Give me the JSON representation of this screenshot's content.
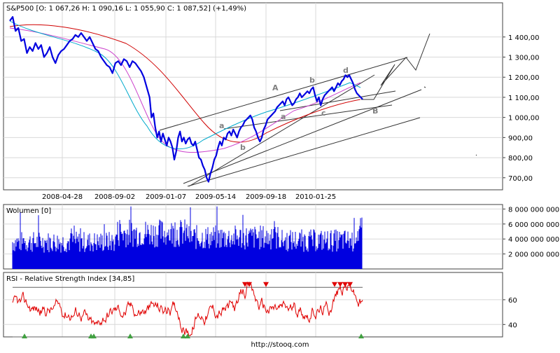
{
  "footer": "http://stooq.com",
  "chart_data": [
    {
      "type": "line",
      "title": "S&P500 [O: 1 067,26  H: 1 090,16  L: 1 055,90  C: 1 087,52] (+1,49%)",
      "x_tick_labels": [
        "2008-04-28",
        "2008-09-02",
        "2009-01-07",
        "2009-05-14",
        "2009-09-18",
        "2010-01-25"
      ],
      "y_tick_values": [
        700,
        800,
        900,
        1000,
        1100,
        1200,
        1300,
        1400
      ],
      "y_tick_labels": [
        "700,00",
        "800,00",
        "900,00",
        "1 000,00",
        "1 100,00",
        "1 200,00",
        "1 300,00",
        "1 400,00"
      ],
      "ylim": [
        640,
        1570
      ],
      "grid": true,
      "series": [],
      "price_points": [
        [
          0,
          1480
        ],
        [
          3,
          1500
        ],
        [
          6,
          1430
        ],
        [
          9,
          1445
        ],
        [
          12,
          1380
        ],
        [
          15,
          1390
        ],
        [
          18,
          1320
        ],
        [
          21,
          1350
        ],
        [
          24,
          1330
        ],
        [
          27,
          1370
        ],
        [
          30,
          1340
        ],
        [
          33,
          1360
        ],
        [
          36,
          1300
        ],
        [
          39,
          1320
        ],
        [
          42,
          1350
        ],
        [
          45,
          1300
        ],
        [
          48,
          1270
        ],
        [
          51,
          1310
        ],
        [
          54,
          1330
        ],
        [
          57,
          1340
        ],
        [
          60,
          1360
        ],
        [
          63,
          1380
        ],
        [
          66,
          1390
        ],
        [
          69,
          1410
        ],
        [
          72,
          1400
        ],
        [
          75,
          1420
        ],
        [
          78,
          1400
        ],
        [
          81,
          1380
        ],
        [
          84,
          1400
        ],
        [
          87,
          1370
        ],
        [
          90,
          1340
        ],
        [
          93,
          1330
        ],
        [
          96,
          1300
        ],
        [
          99,
          1280
        ],
        [
          102,
          1260
        ],
        [
          105,
          1250
        ],
        [
          108,
          1220
        ],
        [
          111,
          1270
        ],
        [
          114,
          1280
        ],
        [
          117,
          1260
        ],
        [
          120,
          1290
        ],
        [
          123,
          1280
        ],
        [
          126,
          1250
        ],
        [
          129,
          1280
        ],
        [
          132,
          1270
        ],
        [
          135,
          1250
        ],
        [
          138,
          1230
        ],
        [
          141,
          1200
        ],
        [
          144,
          1150
        ],
        [
          147,
          1100
        ],
        [
          149,
          1000
        ],
        [
          151,
          1020
        ],
        [
          153,
          950
        ],
        [
          155,
          900
        ],
        [
          157,
          930
        ],
        [
          159,
          880
        ],
        [
          161,
          920
        ],
        [
          163,
          890
        ],
        [
          165,
          860
        ],
        [
          167,
          900
        ],
        [
          169,
          880
        ],
        [
          171,
          850
        ],
        [
          173,
          790
        ],
        [
          175,
          830
        ],
        [
          177,
          900
        ],
        [
          179,
          930
        ],
        [
          181,
          880
        ],
        [
          183,
          900
        ],
        [
          185,
          870
        ],
        [
          187,
          890
        ],
        [
          189,
          900
        ],
        [
          191,
          870
        ],
        [
          193,
          860
        ],
        [
          195,
          880
        ],
        [
          197,
          840
        ],
        [
          199,
          800
        ],
        [
          201,
          790
        ],
        [
          203,
          760
        ],
        [
          205,
          740
        ],
        [
          207,
          700
        ],
        [
          209,
          680
        ],
        [
          211,
          720
        ],
        [
          213,
          750
        ],
        [
          215,
          790
        ],
        [
          217,
          810
        ],
        [
          219,
          850
        ],
        [
          221,
          880
        ],
        [
          223,
          860
        ],
        [
          225,
          900
        ],
        [
          227,
          890
        ],
        [
          229,
          920
        ],
        [
          231,
          930
        ],
        [
          233,
          910
        ],
        [
          235,
          940
        ],
        [
          237,
          920
        ],
        [
          239,
          900
        ],
        [
          241,
          930
        ],
        [
          243,
          950
        ],
        [
          245,
          960
        ],
        [
          247,
          980
        ],
        [
          249,
          990
        ],
        [
          251,
          1000
        ],
        [
          253,
          1010
        ],
        [
          255,
          990
        ],
        [
          257,
          950
        ],
        [
          259,
          930
        ],
        [
          261,
          900
        ],
        [
          263,
          880
        ],
        [
          265,
          900
        ],
        [
          267,
          940
        ],
        [
          269,
          960
        ],
        [
          271,
          990
        ],
        [
          273,
          1000
        ],
        [
          275,
          1010
        ],
        [
          277,
          1020
        ],
        [
          279,
          1030
        ],
        [
          281,
          1050
        ],
        [
          283,
          1060
        ],
        [
          285,
          1070
        ],
        [
          287,
          1080
        ],
        [
          289,
          1060
        ],
        [
          291,
          1090
        ],
        [
          293,
          1100
        ],
        [
          295,
          1080
        ],
        [
          297,
          1060
        ],
        [
          299,
          1070
        ],
        [
          301,
          1090
        ],
        [
          303,
          1100
        ],
        [
          305,
          1120
        ],
        [
          307,
          1100
        ],
        [
          309,
          1110
        ],
        [
          311,
          1120
        ],
        [
          313,
          1130
        ],
        [
          315,
          1120
        ],
        [
          317,
          1140
        ],
        [
          319,
          1150
        ],
        [
          321,
          1110
        ],
        [
          323,
          1080
        ],
        [
          325,
          1100
        ],
        [
          327,
          1060
        ],
        [
          329,
          1090
        ],
        [
          331,
          1110
        ],
        [
          333,
          1120
        ],
        [
          335,
          1130
        ],
        [
          337,
          1140
        ],
        [
          339,
          1150
        ],
        [
          341,
          1130
        ],
        [
          343,
          1150
        ],
        [
          345,
          1170
        ],
        [
          347,
          1160
        ],
        [
          349,
          1180
        ],
        [
          351,
          1190
        ],
        [
          353,
          1210
        ],
        [
          355,
          1200
        ],
        [
          357,
          1210
        ],
        [
          359,
          1190
        ],
        [
          361,
          1170
        ],
        [
          363,
          1140
        ],
        [
          365,
          1120
        ],
        [
          367,
          1110
        ],
        [
          369,
          1100
        ],
        [
          371,
          1090
        ]
      ],
      "annotations": [
        "A",
        "B",
        "a",
        "b",
        "c",
        "d",
        "a",
        "b"
      ]
    },
    {
      "type": "bar",
      "title": "Wolumen [0]",
      "y_tick_values": [
        2000000000,
        4000000000,
        6000000000,
        8000000000
      ],
      "y_tick_labels": [
        "2 000 000 000",
        "4 000 000 000",
        "6 000 000 000",
        "8 000 000 000"
      ],
      "ylim": [
        0,
        8600000000
      ],
      "grid": true
    },
    {
      "type": "line",
      "title": "RSI - Relative Strength Index [34,85]",
      "y_tick_values": [
        40,
        60
      ],
      "y_tick_labels": [
        "40",
        "60"
      ],
      "ylim": [
        30,
        82
      ],
      "levels": [
        30,
        70
      ],
      "grid": true
    }
  ]
}
